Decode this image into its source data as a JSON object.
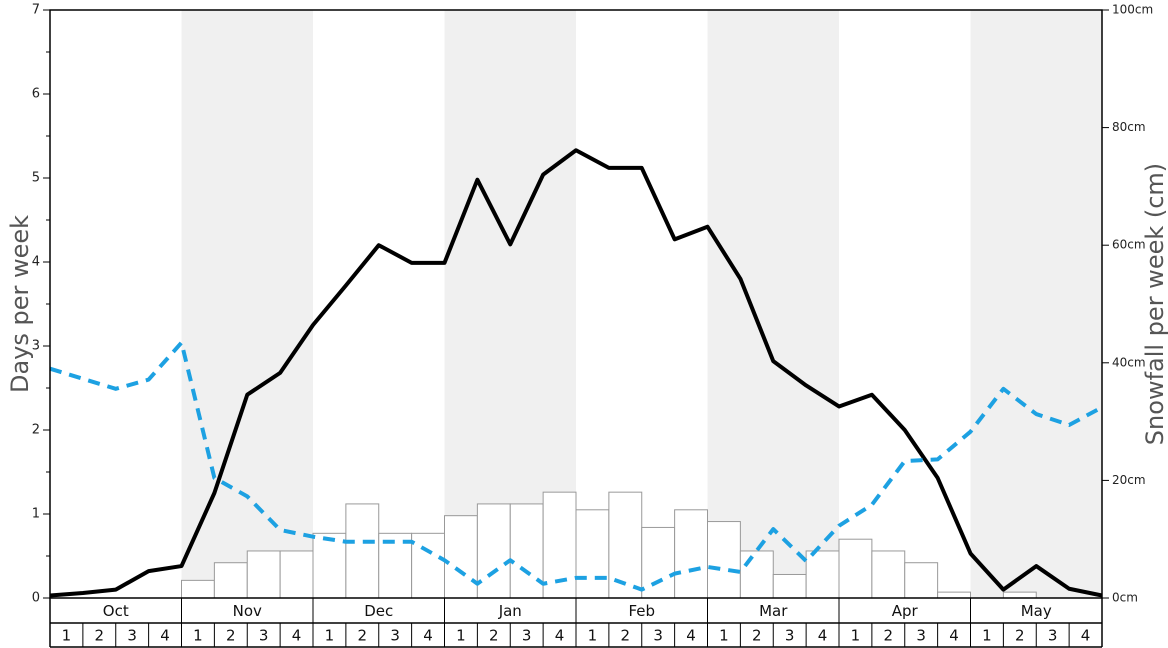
{
  "chart_data": {
    "type": "line",
    "months": [
      "Oct",
      "Nov",
      "Dec",
      "Jan",
      "Feb",
      "Mar",
      "Apr",
      "May"
    ],
    "week_labels": [
      "1",
      "2",
      "3",
      "4"
    ],
    "ylabel_left": "Days per week",
    "ylabel_right": "Snowfall per week (cm)",
    "ylim_left": [
      0,
      7
    ],
    "ylim_right": [
      0,
      100
    ],
    "left_ticks": [
      0,
      1,
      2,
      3,
      4,
      5,
      6,
      7
    ],
    "right_ticks": [
      "0cm",
      "20cm",
      "40cm",
      "60cm",
      "80cm",
      "100cm"
    ],
    "shading": "alternating months shaded grey (Nov, Jan, Mar, May)",
    "series": [
      {
        "type": "line",
        "style": "solid",
        "color": "#000000",
        "axis": "left",
        "values": [
          0.03,
          0.06,
          0.1,
          0.32,
          0.38,
          1.25,
          2.42,
          2.68,
          3.25,
          3.72,
          4.2,
          3.99,
          3.99,
          4.98,
          4.21,
          5.04,
          5.33,
          5.12,
          5.12,
          4.27,
          4.42,
          3.8,
          2.82,
          2.53,
          2.28,
          2.42,
          2.0,
          1.43,
          0.53,
          0.1,
          0.38,
          0.11,
          0.03
        ]
      },
      {
        "type": "line",
        "style": "dashed",
        "color": "#1da1e2",
        "axis": "left",
        "values": [
          2.73,
          2.61,
          2.49,
          2.6,
          3.04,
          1.43,
          1.21,
          0.81,
          0.73,
          0.67,
          0.67,
          0.67,
          0.45,
          0.17,
          0.45,
          0.17,
          0.24,
          0.24,
          0.1,
          0.29,
          0.37,
          0.31,
          0.82,
          0.44,
          0.86,
          1.11,
          1.63,
          1.65,
          1.98,
          2.49,
          2.19,
          2.06,
          2.27
        ]
      },
      {
        "type": "bar",
        "color": "#ffffff",
        "edgecolor": "#999999",
        "axis": "right",
        "unit": "cm",
        "values": [
          0,
          0,
          0,
          0,
          3,
          6,
          8,
          8,
          11,
          16,
          11,
          11,
          14,
          16,
          16,
          18,
          15,
          18,
          12,
          15,
          13,
          8,
          4,
          8,
          10,
          8,
          6,
          1,
          0,
          1,
          0,
          0
        ]
      }
    ]
  }
}
